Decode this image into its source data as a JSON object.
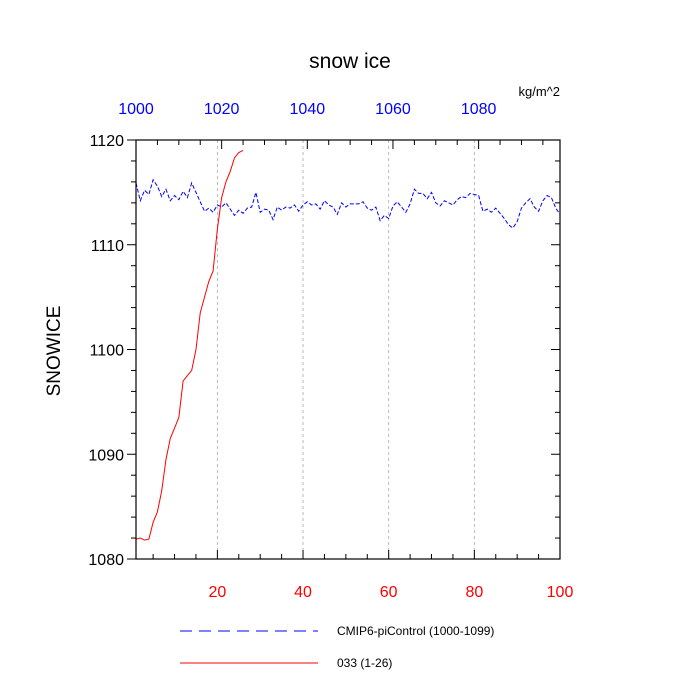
{
  "chart_data": {
    "type": "line",
    "title": "snow ice",
    "units": "kg/m^2",
    "ylabel": "SNOWICE",
    "ylim": [
      1080,
      1120
    ],
    "yticks": [
      1080,
      1090,
      1100,
      1110,
      1120
    ],
    "yticks_minor_step": 2,
    "x_bottom": {
      "range": [
        1,
        100
      ],
      "ticks": [
        20,
        40,
        60,
        80,
        100
      ],
      "tick_color": "#ff0000",
      "minor_step": 5
    },
    "x_top": {
      "range": [
        1000,
        1099
      ],
      "ticks": [
        1000,
        1020,
        1040,
        1060,
        1080
      ],
      "tick_color": "#0000ff",
      "minor_step": 5
    },
    "grid": "vertical dashed at major bottom ticks",
    "series": [
      {
        "name": "CMIP6-piControl (1000-1099)",
        "color": "#0000ff",
        "dash": "dashed",
        "axis": "top",
        "x": [
          1000,
          1001,
          1002,
          1003,
          1004,
          1005,
          1006,
          1007,
          1008,
          1009,
          1010,
          1011,
          1012,
          1013,
          1014,
          1015,
          1016,
          1017,
          1018,
          1019,
          1020,
          1021,
          1022,
          1023,
          1024,
          1025,
          1026,
          1027,
          1028,
          1029,
          1030,
          1031,
          1032,
          1033,
          1034,
          1035,
          1036,
          1037,
          1038,
          1039,
          1040,
          1041,
          1042,
          1043,
          1044,
          1045,
          1046,
          1047,
          1048,
          1049,
          1050,
          1051,
          1052,
          1053,
          1054,
          1055,
          1056,
          1057,
          1058,
          1059,
          1060,
          1061,
          1062,
          1063,
          1064,
          1065,
          1066,
          1067,
          1068,
          1069,
          1070,
          1071,
          1072,
          1073,
          1074,
          1075,
          1076,
          1077,
          1078,
          1079,
          1080,
          1081,
          1082,
          1083,
          1084,
          1085,
          1086,
          1087,
          1088,
          1089,
          1090,
          1091,
          1092,
          1093,
          1094,
          1095,
          1096,
          1097,
          1098,
          1099
        ],
        "y": [
          1115.9,
          1114.2,
          1115.2,
          1114.8,
          1116.2,
          1115.6,
          1114.6,
          1115.3,
          1114.2,
          1114.7,
          1114.3,
          1115.1,
          1114.5,
          1115.9,
          1115.0,
          1114.1,
          1113.2,
          1113.5,
          1113.1,
          1113.8,
          1113.6,
          1114.0,
          1113.4,
          1112.8,
          1113.3,
          1113.0,
          1113.5,
          1113.6,
          1115.0,
          1113.1,
          1113.4,
          1113.3,
          1112.4,
          1113.6,
          1113.3,
          1113.6,
          1113.5,
          1113.8,
          1113.2,
          1113.8,
          1114.1,
          1113.8,
          1113.9,
          1113.4,
          1114.2,
          1113.8,
          1113.6,
          1112.9,
          1114.0,
          1113.6,
          1113.9,
          1113.9,
          1113.9,
          1114.1,
          1113.5,
          1113.3,
          1113.6,
          1112.3,
          1112.8,
          1112.5,
          1113.7,
          1114.1,
          1113.6,
          1113.1,
          1113.9,
          1115.3,
          1114.9,
          1114.9,
          1114.4,
          1115.0,
          1114.0,
          1113.7,
          1114.2,
          1114.0,
          1113.8,
          1114.3,
          1114.6,
          1114.5,
          1114.9,
          1114.8,
          1114.7,
          1113.2,
          1113.4,
          1113.1,
          1113.5,
          1113.0,
          1112.5,
          1111.9,
          1111.6,
          1112.2,
          1113.5,
          1114.0,
          1114.4,
          1113.6,
          1113.2,
          1114.2,
          1114.7,
          1114.5,
          1113.5,
          1112.9
        ]
      },
      {
        "name": "033 (1-26)",
        "color": "#ff0000",
        "dash": "solid",
        "axis": "bottom",
        "x": [
          1,
          2,
          3,
          4,
          5,
          6,
          7,
          8,
          9,
          10,
          11,
          12,
          13,
          14,
          15,
          16,
          17,
          18,
          19,
          20,
          21,
          22,
          23,
          24,
          25,
          26
        ],
        "y": [
          1081.9,
          1082.0,
          1081.8,
          1081.9,
          1083.5,
          1084.5,
          1086.5,
          1089.5,
          1091.5,
          1092.5,
          1093.5,
          1097.0,
          1097.5,
          1098.0,
          1100.0,
          1103.5,
          1105.0,
          1106.5,
          1107.5,
          1111.5,
          1114.5,
          1116.0,
          1117.0,
          1118.3,
          1118.8,
          1119.0
        ]
      }
    ],
    "legend": {
      "placement": "bottom",
      "entries": [
        "CMIP6-piControl (1000-1099)",
        "033 (1-26)"
      ]
    }
  }
}
